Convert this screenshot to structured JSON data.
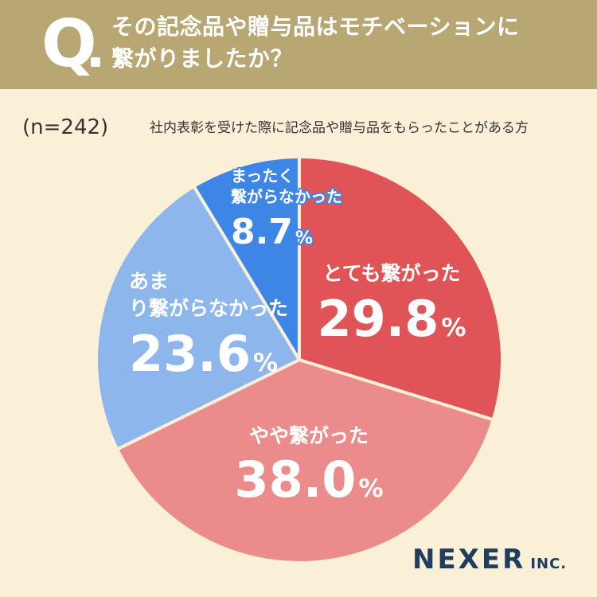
{
  "header": {
    "q_mark": "Q",
    "question_line1": "その記念品や贈与品はモチベーションに",
    "question_line2": "繋がりましたか？"
  },
  "sample": {
    "n_label": "(n=242)",
    "description": "社内表彰を受けた際に記念品や贈与品をもらったことがある方"
  },
  "brand": {
    "name": "NEXER",
    "suffix": "INC."
  },
  "colors": {
    "header_bg": "#b8a673",
    "page_bg": "#faf0d7",
    "slice_1": "#e05356",
    "slice_2": "#ec8b8b",
    "slice_3": "#8cb6ec",
    "slice_4": "#3d86e6"
  },
  "chart_data": {
    "type": "pie",
    "title": "その記念品や贈与品はモチベーションに繋がりましたか？",
    "unit": "%",
    "slices": [
      {
        "label": "とても繋がった",
        "value": 29.8,
        "value_text": "29.8",
        "color": "#e05356"
      },
      {
        "label": "やや繋がった",
        "value": 38.0,
        "value_text": "38.0",
        "color": "#ec8b8b"
      },
      {
        "label": "あまり繋がらなかった",
        "value": 23.6,
        "value_text": "23.6",
        "color": "#8cb6ec"
      },
      {
        "label": "まったく繋がらなかった",
        "value": 8.7,
        "value_text": "8.7",
        "color": "#3d86e6"
      }
    ]
  }
}
